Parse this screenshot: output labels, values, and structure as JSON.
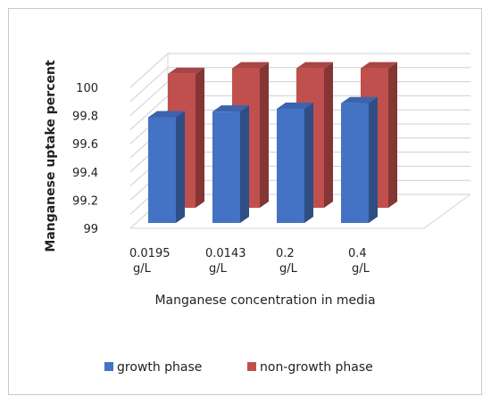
{
  "chart_data": {
    "type": "bar",
    "style": "3d-clustered-column",
    "categories": [
      [
        "0.0195",
        "g/L"
      ],
      [
        "0.0143",
        "g/L"
      ],
      [
        "0.2",
        "g/L"
      ],
      [
        "0.4",
        "g/L"
      ]
    ],
    "series": [
      {
        "name": "growth phase",
        "color": "#4472c4",
        "values": [
          99.75,
          99.79,
          99.81,
          99.85
        ]
      },
      {
        "name": "non-growth phase",
        "color": "#c0504d",
        "values": [
          99.95,
          99.99,
          99.99,
          99.99
        ]
      }
    ],
    "xlabel": "Manganese concentration in media",
    "ylabel": "Manganese uptake percent",
    "ylim": [
      99,
      100
    ],
    "yticks": [
      99,
      99.2,
      99.4,
      99.6,
      99.8,
      100
    ],
    "ytick_labels": [
      "99",
      "99.2",
      "99.4",
      "99.6",
      "99.8",
      "100"
    ],
    "grid": true,
    "legend": "bottom"
  }
}
